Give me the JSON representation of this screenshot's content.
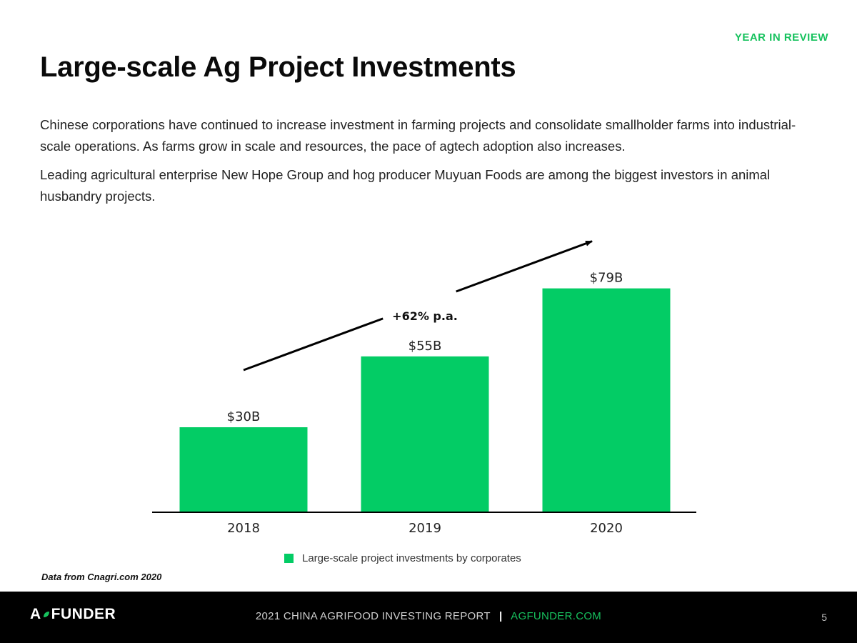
{
  "header": {
    "kicker": "YEAR IN REVIEW",
    "title": "Large-scale Ag Project Investments"
  },
  "body": {
    "paragraphs": [
      "Chinese corporations have continued to increase investment in farming projects and consolidate smallholder farms into industrial-scale operations. As farms grow in scale and resources, the pace of agtech adoption also increases.",
      "Leading agricultural enterprise New Hope Group and hog producer Muyuan Foods are among the biggest investors in animal husbandry projects."
    ]
  },
  "chart_data": {
    "type": "bar",
    "categories": [
      "2018",
      "2019",
      "2020"
    ],
    "series": [
      {
        "name": "Large-scale project investments by corporates",
        "values": [
          30,
          55,
          79
        ],
        "labels": [
          "$30B",
          "$55B",
          "$79B"
        ]
      }
    ],
    "annotation": "+62% p.a.",
    "ylim": [
      0,
      90
    ],
    "grid": false,
    "legend_position": "bottom",
    "colors": {
      "bar": "#03cc65",
      "axis": "#000000",
      "arrow": "#000000"
    }
  },
  "source_note": "Data from Cnagri.com 2020",
  "footer": {
    "logo_left": "A",
    "logo_right": "FUNDER",
    "report_name": "2021 CHINA AGRIFOOD INVESTING REPORT",
    "separator": "|",
    "website": "AGFUNDER.COM",
    "page_number": "5"
  }
}
